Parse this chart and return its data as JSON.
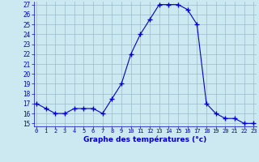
{
  "hours": [
    0,
    1,
    2,
    3,
    4,
    5,
    6,
    7,
    8,
    9,
    10,
    11,
    12,
    13,
    14,
    15,
    16,
    17,
    18,
    19,
    20,
    21,
    22,
    23
  ],
  "temperatures": [
    17,
    16.5,
    16,
    16,
    16.5,
    16.5,
    16.5,
    16,
    17.5,
    19,
    22,
    24,
    25.5,
    27,
    27,
    27,
    26.5,
    25,
    17,
    16,
    15.5,
    15.5,
    15,
    15
  ],
  "line_color": "#0000cc",
  "marker": "+",
  "marker_size": 4,
  "marker_color": "#0000cc",
  "bg_color": "#cce8f0",
  "grid_color": "#99bbcc",
  "xlabel": "Graphe des températures (°c)",
  "xlabel_color": "#0000cc",
  "tick_color": "#0000cc",
  "ylim_min": 15,
  "ylim_max": 27,
  "yticks": [
    15,
    16,
    17,
    18,
    19,
    20,
    21,
    22,
    23,
    24,
    25,
    26,
    27
  ],
  "xlim_min": 0,
  "xlim_max": 23,
  "xtick_labels": [
    "0",
    "1",
    "2",
    "3",
    "4",
    "5",
    "6",
    "7",
    "8",
    "9",
    "10",
    "11",
    "12",
    "13",
    "14",
    "15",
    "16",
    "17",
    "18",
    "19",
    "20",
    "21",
    "22",
    "23"
  ]
}
